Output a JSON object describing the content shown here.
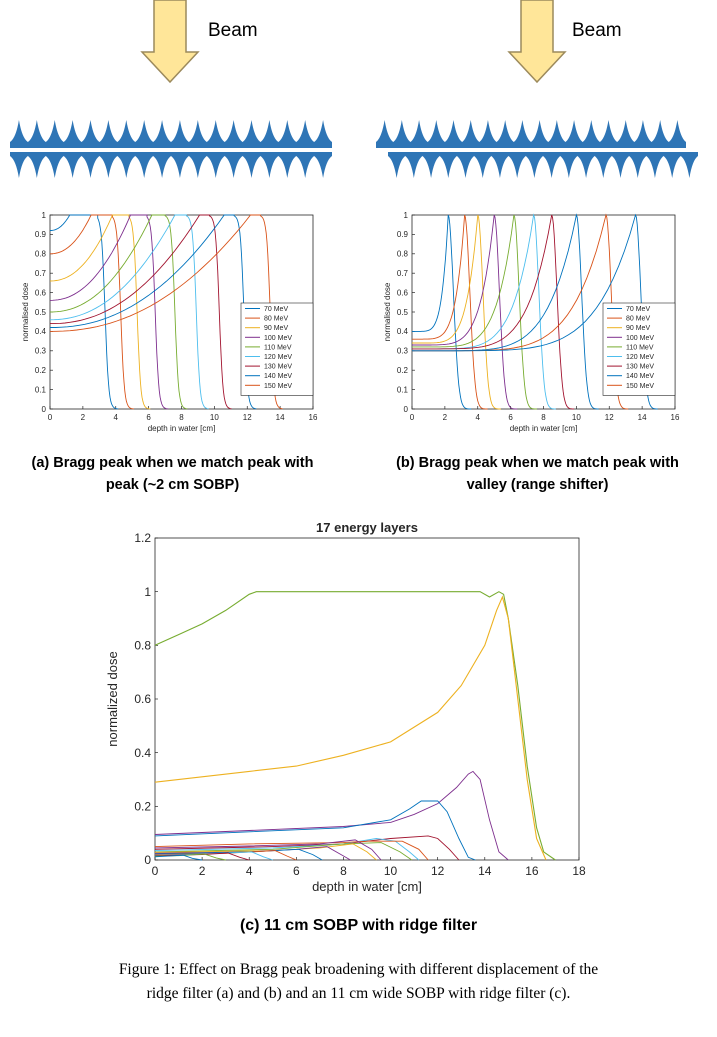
{
  "top_panels": [
    {
      "beam_label": "Beam",
      "caption_line1": "(a) Bragg peak when we match peak with",
      "caption_line2": "peak (~2 cm SOBP)"
    },
    {
      "beam_label": "Beam",
      "caption_line1": "(b) Bragg peak when we match peak with",
      "caption_line2": "valley (range shifter)"
    }
  ],
  "caption_c": "(c) 11 cm SOBP with ridge filter",
  "figure_caption_line1": "Figure 1: Effect on Bragg peak broadening with different displacement of the",
  "figure_caption_line2": "ridge filter (a) and (b) and an 11 cm wide SOBP with ridge filter (c).",
  "colors": {
    "arrow_fill": "#FFE699",
    "arrow_stroke": "#9C8A5C",
    "ridge_fill": "#2E75B6",
    "series": [
      "#0072BD",
      "#D95319",
      "#EDB120",
      "#7E2F8E",
      "#77AC30",
      "#4DBEEE",
      "#A2142F",
      "#0072BD",
      "#D95319"
    ]
  },
  "chart_data": [
    {
      "type": "line",
      "xlabel": "depth in water [cm]",
      "ylabel": "normalised dose",
      "xlim": [
        0,
        16
      ],
      "ylim": [
        0,
        1
      ],
      "xticks": [
        0,
        2,
        4,
        6,
        8,
        10,
        12,
        14,
        16
      ],
      "yticks": [
        0,
        0.1,
        0.2,
        0.3,
        0.4,
        0.5,
        0.6,
        0.7,
        0.8,
        0.9,
        1
      ],
      "legend_position": "bottom-right",
      "series": [
        {
          "name": "70 MeV",
          "entrance": 0.92,
          "plateau_start": 1.2,
          "plateau_end": 2.9,
          "falloff": 3.35
        },
        {
          "name": "80 MeV",
          "entrance": 0.8,
          "plateau_start": 2.5,
          "plateau_end": 3.8,
          "falloff": 4.3
        },
        {
          "name": "90 MeV",
          "entrance": 0.66,
          "plateau_start": 3.8,
          "plateau_end": 4.8,
          "falloff": 5.3
        },
        {
          "name": "100 MeV",
          "entrance": 0.56,
          "plateau_start": 4.9,
          "plateau_end": 5.9,
          "falloff": 6.4
        },
        {
          "name": "110 MeV",
          "entrance": 0.5,
          "plateau_start": 6.2,
          "plateau_end": 7.0,
          "falloff": 7.6
        },
        {
          "name": "120 MeV",
          "entrance": 0.46,
          "plateau_start": 7.6,
          "plateau_end": 8.3,
          "falloff": 8.9
        },
        {
          "name": "130 MeV",
          "entrance": 0.44,
          "plateau_start": 9.1,
          "plateau_end": 9.7,
          "falloff": 10.3
        },
        {
          "name": "140 MeV",
          "entrance": 0.42,
          "plateau_start": 10.6,
          "plateau_end": 11.2,
          "falloff": 11.8
        },
        {
          "name": "150 MeV",
          "entrance": 0.4,
          "plateau_start": 12.2,
          "plateau_end": 12.8,
          "falloff": 13.4
        }
      ]
    },
    {
      "type": "line",
      "xlabel": "depth in water [cm]",
      "ylabel": "normalised dose",
      "xlim": [
        0,
        16
      ],
      "ylim": [
        0,
        1
      ],
      "xticks": [
        0,
        2,
        4,
        6,
        8,
        10,
        12,
        14,
        16
      ],
      "yticks": [
        0,
        0.1,
        0.2,
        0.3,
        0.4,
        0.5,
        0.6,
        0.7,
        0.8,
        0.9,
        1
      ],
      "legend_position": "bottom-right",
      "series": [
        {
          "name": "70 MeV",
          "entrance": 0.4,
          "peak": 2.2
        },
        {
          "name": "80 MeV",
          "entrance": 0.36,
          "peak": 3.2
        },
        {
          "name": "90 MeV",
          "entrance": 0.34,
          "peak": 4.0
        },
        {
          "name": "100 MeV",
          "entrance": 0.33,
          "peak": 5.0
        },
        {
          "name": "110 MeV",
          "entrance": 0.32,
          "peak": 6.2
        },
        {
          "name": "120 MeV",
          "entrance": 0.31,
          "peak": 7.4
        },
        {
          "name": "130 MeV",
          "entrance": 0.31,
          "peak": 8.5
        },
        {
          "name": "140 MeV",
          "entrance": 0.3,
          "peak": 10.0
        },
        {
          "name": "150 MeV",
          "entrance": 0.3,
          "peak": 11.8
        },
        {
          "name": "",
          "entrance": 0.3,
          "peak": 13.6
        }
      ]
    },
    {
      "type": "line",
      "title": "17 energy layers",
      "xlabel": "depth in water [cm]",
      "ylabel": "normalized dose",
      "xlim": [
        0,
        18
      ],
      "ylim": [
        0,
        1.2
      ],
      "xticks": [
        0,
        2,
        4,
        6,
        8,
        10,
        12,
        14,
        16,
        18
      ],
      "yticks": [
        0,
        0.2,
        0.4,
        0.6,
        0.8,
        1,
        1.2
      ],
      "series": [
        {
          "name": "",
          "points": [
            [
              0,
              0.8
            ],
            [
              1,
              0.84
            ],
            [
              2,
              0.88
            ],
            [
              3,
              0.93
            ],
            [
              4,
              0.99
            ],
            [
              4.3,
              1.0
            ],
            [
              13.4,
              1.0
            ],
            [
              13.8,
              1.0
            ],
            [
              14.2,
              0.98
            ],
            [
              14.6,
              1.0
            ],
            [
              14.8,
              0.99
            ],
            [
              15.0,
              0.9
            ],
            [
              15.4,
              0.65
            ],
            [
              15.8,
              0.35
            ],
            [
              16.2,
              0.12
            ],
            [
              16.5,
              0.03
            ],
            [
              17,
              0.0
            ]
          ]
        },
        {
          "name": "",
          "points": [
            [
              0,
              0.29
            ],
            [
              2,
              0.31
            ],
            [
              4,
              0.33
            ],
            [
              6,
              0.35
            ],
            [
              8,
              0.39
            ],
            [
              10,
              0.44
            ],
            [
              12,
              0.55
            ],
            [
              13,
              0.65
            ],
            [
              14,
              0.8
            ],
            [
              14.5,
              0.93
            ],
            [
              14.75,
              0.98
            ],
            [
              15.0,
              0.9
            ],
            [
              15.4,
              0.6
            ],
            [
              15.8,
              0.3
            ],
            [
              16.2,
              0.08
            ],
            [
              16.6,
              0.0
            ]
          ]
        },
        {
          "name": "",
          "points": [
            [
              0,
              0.095
            ],
            [
              4,
              0.11
            ],
            [
              8,
              0.125
            ],
            [
              10,
              0.14
            ],
            [
              11,
              0.17
            ],
            [
              12,
              0.21
            ],
            [
              12.8,
              0.27
            ],
            [
              13.3,
              0.32
            ],
            [
              13.5,
              0.33
            ],
            [
              13.8,
              0.3
            ],
            [
              14.2,
              0.15
            ],
            [
              14.6,
              0.03
            ],
            [
              15,
              0.0
            ]
          ]
        },
        {
          "name": "",
          "points": [
            [
              0,
              0.09
            ],
            [
              4,
              0.105
            ],
            [
              8,
              0.12
            ],
            [
              10,
              0.15
            ],
            [
              10.8,
              0.19
            ],
            [
              11.3,
              0.22
            ],
            [
              12.0,
              0.22
            ],
            [
              12.4,
              0.18
            ],
            [
              12.9,
              0.08
            ],
            [
              13.3,
              0.01
            ],
            [
              13.6,
              0.0
            ]
          ]
        },
        {
          "name": "",
          "points": [
            [
              0,
              0.04
            ],
            [
              5,
              0.05
            ],
            [
              8,
              0.06
            ],
            [
              10,
              0.08
            ],
            [
              11.6,
              0.09
            ],
            [
              12.0,
              0.08
            ],
            [
              12.5,
              0.04
            ],
            [
              12.9,
              0.0
            ]
          ]
        },
        {
          "name": "",
          "points": [
            [
              0,
              0.035
            ],
            [
              5,
              0.045
            ],
            [
              8,
              0.06
            ],
            [
              9.4,
              0.08
            ],
            [
              10.2,
              0.07
            ],
            [
              10.8,
              0.03
            ],
            [
              11.2,
              0.0
            ]
          ]
        },
        {
          "name": "",
          "points": [
            [
              0,
              0.03
            ],
            [
              5,
              0.04
            ],
            [
              8,
              0.06
            ],
            [
              9.6,
              0.065
            ],
            [
              10.4,
              0.03
            ],
            [
              10.9,
              0.0
            ]
          ]
        },
        {
          "name": "",
          "points": [
            [
              0,
              0.028
            ],
            [
              5,
              0.035
            ],
            [
              7,
              0.045
            ],
            [
              8.4,
              0.06
            ],
            [
              9.0,
              0.03
            ],
            [
              9.4,
              0.0
            ]
          ]
        },
        {
          "name": "",
          "points": [
            [
              0,
              0.025
            ],
            [
              4,
              0.03
            ],
            [
              6,
              0.04
            ],
            [
              7.3,
              0.05
            ],
            [
              7.9,
              0.02
            ],
            [
              8.3,
              0.0
            ]
          ]
        },
        {
          "name": "",
          "points": [
            [
              0,
              0.022
            ],
            [
              4,
              0.03
            ],
            [
              6.1,
              0.04
            ],
            [
              6.7,
              0.02
            ],
            [
              7.1,
              0.0
            ]
          ]
        },
        {
          "name": "",
          "points": [
            [
              0,
              0.02
            ],
            [
              3,
              0.025
            ],
            [
              5.1,
              0.035
            ],
            [
              5.6,
              0.015
            ],
            [
              6.0,
              0.0
            ]
          ]
        },
        {
          "name": "",
          "points": [
            [
              0,
              0.018
            ],
            [
              2,
              0.022
            ],
            [
              4.1,
              0.03
            ],
            [
              4.6,
              0.012
            ],
            [
              5.0,
              0.0
            ]
          ]
        },
        {
          "name": "",
          "points": [
            [
              0,
              0.016
            ],
            [
              2,
              0.02
            ],
            [
              3.1,
              0.026
            ],
            [
              3.6,
              0.01
            ],
            [
              4.0,
              0.0
            ]
          ]
        },
        {
          "name": "",
          "points": [
            [
              0,
              0.014
            ],
            [
              1,
              0.016
            ],
            [
              2.1,
              0.022
            ],
            [
              2.6,
              0.008
            ],
            [
              3.0,
              0.0
            ]
          ]
        },
        {
          "name": "",
          "points": [
            [
              0,
              0.012
            ],
            [
              1.2,
              0.018
            ],
            [
              1.6,
              0.006
            ],
            [
              2.0,
              0.0
            ]
          ]
        },
        {
          "name": "",
          "points": [
            [
              0,
              0.05
            ],
            [
              4,
              0.06
            ],
            [
              8,
              0.065
            ],
            [
              9,
              0.07
            ],
            [
              10.5,
              0.07
            ],
            [
              11.2,
              0.04
            ],
            [
              11.6,
              0.0
            ]
          ]
        },
        {
          "name": "",
          "points": [
            [
              0,
              0.045
            ],
            [
              4,
              0.052
            ],
            [
              7,
              0.06
            ],
            [
              8.5,
              0.075
            ],
            [
              9.2,
              0.04
            ],
            [
              9.6,
              0.0
            ]
          ]
        }
      ]
    }
  ]
}
